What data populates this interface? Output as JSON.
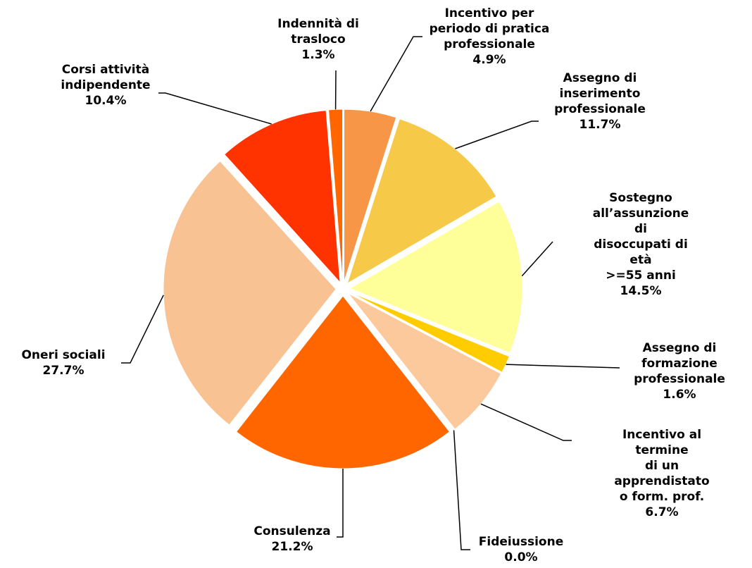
{
  "chart_data": {
    "type": "pie",
    "categories": [
      "Incentivo per\nperiodo di pratica\nprofessionale",
      "Assegno di\ninserimento\nprofessionale",
      "Sostegno\nall’assunzione di\ndisoccupati di età\n>=55 anni",
      "Assegno di\nformazione\nprofessionale",
      "Incentivo al termine\ndi un apprendistato\no form. prof.",
      "Fideiussione",
      "Consulenza",
      "Oneri sociali",
      "Corsi attività\nindipendente",
      "Indennità di\ntrasloco"
    ],
    "values": [
      4.9,
      11.7,
      14.5,
      1.6,
      6.7,
      0.0,
      21.2,
      27.7,
      10.4,
      1.3
    ],
    "value_labels": [
      "4.9%",
      "11.7%",
      "14.5%",
      "1.6%",
      "6.7%",
      "0.0%",
      "21.2%",
      "27.7%",
      "10.4%",
      "1.3%"
    ],
    "colors": [
      "#f79646",
      "#f7c948",
      "#ffff99",
      "#ffcc00",
      "#fcc99c",
      "#ffcc99",
      "#ff6600",
      "#f9c293",
      "#ff3300",
      "#ff6600"
    ]
  }
}
